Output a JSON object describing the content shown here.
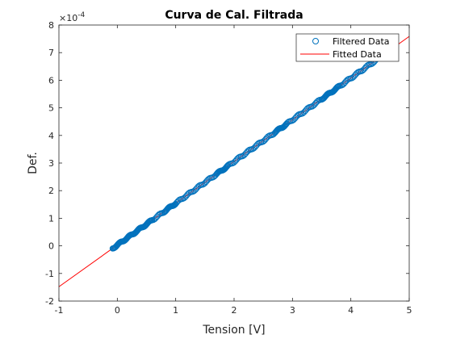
{
  "chart_data": {
    "type": "scatter",
    "title": "Curva de Cal. Filtrada",
    "xlabel": "Tension [V]",
    "ylabel": "Def.",
    "exponent_label": "×10",
    "exponent_power": "-4",
    "xlim": [
      -1,
      5
    ],
    "ylim": [
      -2,
      8
    ],
    "x_ticks": [
      "-1",
      "0",
      "1",
      "2",
      "3",
      "4",
      "5"
    ],
    "y_ticks": [
      "-2",
      "-1",
      "0",
      "1",
      "2",
      "3",
      "4",
      "5",
      "6",
      "7",
      "8"
    ],
    "y_scale_factor": 0.0001,
    "grid": false,
    "legend_position": "top-right",
    "series": [
      {
        "name": "Filtered Data",
        "marker": "circle",
        "color": "#0072BD",
        "x_start": -0.08,
        "x_end": 4.45,
        "x_step": 0.02,
        "density_note": "points dense near 0-0.6, 0.8-1.0, 1.7-1.9, 2.7-2.9, 3.5-3.8"
      },
      {
        "name": "Fitted Data",
        "line": true,
        "color": "#FF0000",
        "slope": 1.5115,
        "intercept": 0.03
      }
    ]
  }
}
